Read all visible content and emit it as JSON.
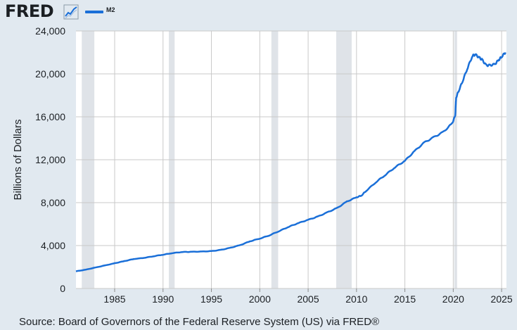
{
  "header": {
    "logo": "FRED",
    "legend_label": "M2",
    "icon": "trend-line-icon"
  },
  "source": "Source: Board of Governors of the Federal Reserve System (US) via FRED®",
  "colors": {
    "background": "#e1e9f0",
    "plot_background": "#ffffff",
    "series": "#1a6fd8",
    "recession": "#dfe3e8",
    "grid": "#c9c9c9",
    "text": "#1b1f23"
  },
  "chart_data": {
    "type": "line",
    "title": "",
    "xlabel": "",
    "ylabel": "Billions of Dollars",
    "xlim": [
      1981.0,
      2025.5
    ],
    "ylim": [
      0,
      24000
    ],
    "grid": true,
    "x_ticks": [
      1985,
      1990,
      1995,
      2000,
      2005,
      2010,
      2015,
      2020,
      2025
    ],
    "y_ticks": [
      0,
      4000,
      8000,
      12000,
      16000,
      20000,
      24000
    ],
    "y_tick_labels": [
      "0",
      "4,000",
      "8,000",
      "12,000",
      "16,000",
      "20,000",
      "24,000"
    ],
    "recessions": [
      [
        1981.6,
        1982.9
      ],
      [
        1990.6,
        1991.2
      ],
      [
        2001.2,
        2001.9
      ],
      [
        2007.9,
        2009.5
      ],
      [
        2020.1,
        2020.4
      ]
    ],
    "series": [
      {
        "name": "M2",
        "points": [
          [
            1981.0,
            1600
          ],
          [
            1982.0,
            1750
          ],
          [
            1983.0,
            1950
          ],
          [
            1984.0,
            2150
          ],
          [
            1985.0,
            2350
          ],
          [
            1986.0,
            2550
          ],
          [
            1987.0,
            2750
          ],
          [
            1988.0,
            2850
          ],
          [
            1989.0,
            3000
          ],
          [
            1990.0,
            3150
          ],
          [
            1991.0,
            3300
          ],
          [
            1992.0,
            3400
          ],
          [
            1993.0,
            3420
          ],
          [
            1994.0,
            3440
          ],
          [
            1995.0,
            3480
          ],
          [
            1996.0,
            3600
          ],
          [
            1997.0,
            3800
          ],
          [
            1998.0,
            4050
          ],
          [
            1999.0,
            4400
          ],
          [
            2000.0,
            4650
          ],
          [
            2001.0,
            4950
          ],
          [
            2002.0,
            5350
          ],
          [
            2003.0,
            5750
          ],
          [
            2004.0,
            6100
          ],
          [
            2005.0,
            6400
          ],
          [
            2006.0,
            6700
          ],
          [
            2007.0,
            7100
          ],
          [
            2008.0,
            7500
          ],
          [
            2009.0,
            8100
          ],
          [
            2010.0,
            8500
          ],
          [
            2010.5,
            8650
          ],
          [
            2011.0,
            9100
          ],
          [
            2012.0,
            9900
          ],
          [
            2013.0,
            10600
          ],
          [
            2014.0,
            11300
          ],
          [
            2015.0,
            11900
          ],
          [
            2016.0,
            12800
          ],
          [
            2017.0,
            13600
          ],
          [
            2018.0,
            14100
          ],
          [
            2019.0,
            14600
          ],
          [
            2019.9,
            15400
          ],
          [
            2020.2,
            16100
          ],
          [
            2020.3,
            17800
          ],
          [
            2020.6,
            18500
          ],
          [
            2021.0,
            19400
          ],
          [
            2021.5,
            20600
          ],
          [
            2022.0,
            21700
          ],
          [
            2022.3,
            21800
          ],
          [
            2022.7,
            21500
          ],
          [
            2023.0,
            21300
          ],
          [
            2023.4,
            20800
          ],
          [
            2023.8,
            20800
          ],
          [
            2024.3,
            20900
          ],
          [
            2024.7,
            21300
          ],
          [
            2025.0,
            21600
          ],
          [
            2025.4,
            22000
          ]
        ]
      }
    ]
  }
}
